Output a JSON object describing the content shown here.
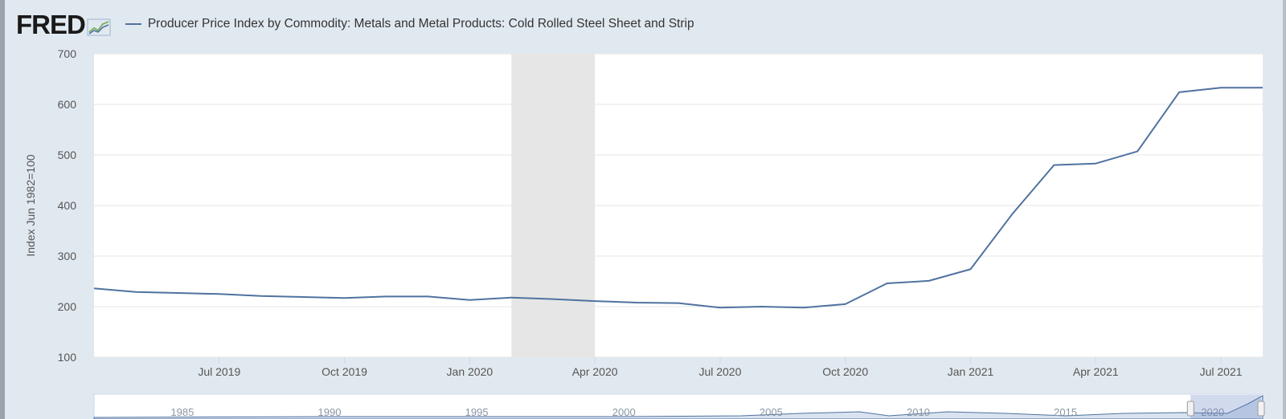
{
  "header": {
    "logo_text": "FRED",
    "series_title": "Producer Price Index by Commodity: Metals and Metal Products: Cold Rolled Steel Sheet and Strip"
  },
  "colors": {
    "series": "#4f72a0",
    "recession": "#e6e6e6",
    "plot_bg": "#ffffff",
    "page_bg": "#e1e9f0"
  },
  "chart_data": {
    "type": "line",
    "title": "Producer Price Index by Commodity: Metals and Metal Products: Cold Rolled Steel Sheet and Strip",
    "xlabel": "",
    "ylabel": "Index Jun 1982=100",
    "ylim": [
      100,
      700
    ],
    "yticks": [
      100,
      200,
      300,
      400,
      500,
      600,
      700
    ],
    "x_range": [
      "2019-04",
      "2021-08"
    ],
    "x_tick_labels": [
      "Jul 2019",
      "Oct 2019",
      "Jan 2020",
      "Apr 2020",
      "Jul 2020",
      "Oct 2020",
      "Jan 2021",
      "Apr 2021",
      "Jul 2021"
    ],
    "grid": true,
    "recession": {
      "start": "2020-02",
      "end": "2020-04"
    },
    "series": [
      {
        "name": "Producer Price Index by Commodity: Metals and Metal Products: Cold Rolled Steel Sheet and Strip",
        "x": [
          "2019-04",
          "2019-05",
          "2019-06",
          "2019-07",
          "2019-08",
          "2019-09",
          "2019-10",
          "2019-11",
          "2019-12",
          "2020-01",
          "2020-02",
          "2020-03",
          "2020-04",
          "2020-05",
          "2020-06",
          "2020-07",
          "2020-08",
          "2020-09",
          "2020-10",
          "2020-11",
          "2020-12",
          "2021-01",
          "2021-02",
          "2021-03",
          "2021-04",
          "2021-05",
          "2021-06",
          "2021-07",
          "2021-08"
        ],
        "values": [
          236,
          229,
          227,
          225,
          221,
          219,
          217,
          220,
          220,
          213,
          218,
          215,
          211,
          208,
          207,
          198,
          200,
          198,
          205,
          246,
          251,
          274,
          383,
          480,
          483,
          507,
          624,
          633,
          633
        ]
      }
    ],
    "navigator": {
      "tick_labels": [
        "1985",
        "1990",
        "1995",
        "2000",
        "2005",
        "2010",
        "2015",
        "2020"
      ]
    }
  }
}
